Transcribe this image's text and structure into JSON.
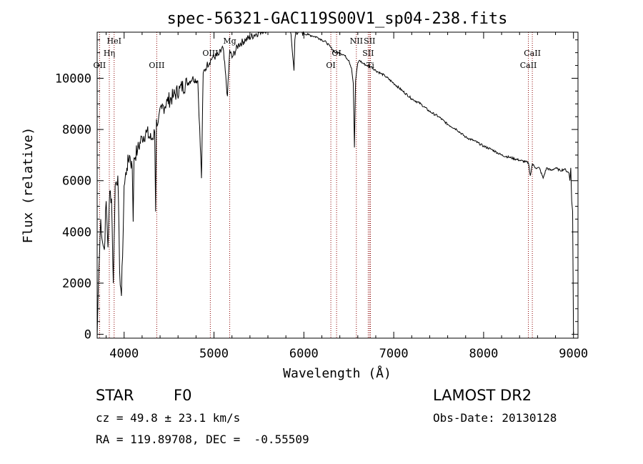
{
  "chart_data": {
    "type": "line",
    "title": "spec-56321-GAC119S00V1_sp04-238.fits",
    "xlabel": "Wavelength (Å)",
    "ylabel": "Flux (relative)",
    "xlim": [
      3700,
      9050
    ],
    "ylim": [
      -150,
      11800
    ],
    "xticks": [
      4000,
      5000,
      6000,
      7000,
      8000,
      9000
    ],
    "yticks": [
      0,
      2000,
      4000,
      6000,
      8000,
      10000
    ],
    "grid": false,
    "legend": "none",
    "line_color": "#000000",
    "marker_color": "#8b0000",
    "series": [
      {
        "x": [
          3700,
          3710,
          3720,
          3740,
          3760,
          3780,
          3800,
          3820,
          3840,
          3860,
          3880,
          3900,
          3930,
          3950,
          3970,
          3990,
          4000,
          4030,
          4060,
          4090,
          4101,
          4110,
          4150,
          4200,
          4250,
          4300,
          4340,
          4350,
          4360,
          4380,
          4420,
          4480,
          4550,
          4620,
          4700,
          4760,
          4820,
          4861,
          4880,
          4920,
          4980,
          5050,
          5100,
          5150,
          5175,
          5200,
          5270,
          5350,
          5450,
          5550,
          5650,
          5750,
          5800,
          5850,
          5890,
          5900,
          5910,
          5950,
          6000,
          6050,
          6100,
          6150,
          6200,
          6250,
          6300,
          6350,
          6400,
          6450,
          6500,
          6530,
          6550,
          6563,
          6575,
          6600,
          6620,
          6650,
          6700,
          6750,
          6800,
          6850,
          6900,
          7000,
          7100,
          7200,
          7300,
          7400,
          7500,
          7600,
          7700,
          7800,
          7900,
          8000,
          8100,
          8200,
          8300,
          8400,
          8498,
          8520,
          8542,
          8580,
          8620,
          8662,
          8700,
          8750,
          8800,
          8850,
          8900,
          8950,
          8960,
          8970,
          8980,
          8990,
          9000
        ],
        "y": [
          -100,
          1500,
          2600,
          4500,
          3600,
          3300,
          5200,
          3400,
          5600,
          5300,
          2000,
          5800,
          6200,
          2500,
          1500,
          4100,
          5800,
          6500,
          7000,
          6500,
          4400,
          6900,
          7200,
          7700,
          7900,
          7600,
          7900,
          4800,
          8400,
          8300,
          8800,
          9100,
          9300,
          9600,
          9800,
          10000,
          9900,
          6100,
          10200,
          10500,
          10800,
          10900,
          11200,
          9300,
          11100,
          10800,
          11300,
          11500,
          11700,
          11900,
          11900,
          12000,
          12050,
          11900,
          10300,
          11500,
          11800,
          11900,
          11750,
          11700,
          11650,
          11600,
          11500,
          11400,
          11200,
          11000,
          11000,
          10900,
          10700,
          10400,
          9800,
          7300,
          9900,
          10600,
          10700,
          10600,
          10500,
          10450,
          10300,
          10200,
          10100,
          9800,
          9500,
          9200,
          9000,
          8700,
          8500,
          8200,
          8000,
          7700,
          7550,
          7350,
          7200,
          7000,
          6900,
          6800,
          6700,
          6200,
          6650,
          6500,
          6500,
          6100,
          6500,
          6400,
          6500,
          6400,
          6450,
          6300,
          6000,
          6500,
          5200,
          4800,
          0
        ]
      }
    ],
    "lines": [
      {
        "label": "OII",
        "x": 3727,
        "row": 3
      },
      {
        "label": "Hη",
        "x": 3835,
        "row": 2
      },
      {
        "label": "HeI",
        "x": 3889,
        "row": 1
      },
      {
        "label": "OIII",
        "x": 4363,
        "row": 3
      },
      {
        "label": "OIII",
        "x": 4959,
        "row": 2
      },
      {
        "label": "Mg",
        "x": 5175,
        "row": 1
      },
      {
        "label": "OI",
        "x": 6300,
        "row": 3
      },
      {
        "label": "OI",
        "x": 6364,
        "row": 2
      },
      {
        "label": "NII",
        "x": 6584,
        "row": 1
      },
      {
        "label": "SII",
        "x": 6716,
        "row": 2
      },
      {
        "label": "SII",
        "x": 6731,
        "row": 1
      },
      {
        "label": "Ti",
        "x": 6740,
        "row": 3
      },
      {
        "label": "CaII",
        "x": 8498,
        "row": 3
      },
      {
        "label": "CaII",
        "x": 8542,
        "row": 2
      }
    ]
  },
  "info": {
    "object_class": "STAR",
    "subclass": "F0",
    "survey": "LAMOST DR2",
    "redshift": "cz = 49.8 ± 23.1 km/s",
    "obs_date": "Obs-Date: 20130128",
    "coords": "RA = 119.89708, DEC =  -0.55509"
  }
}
